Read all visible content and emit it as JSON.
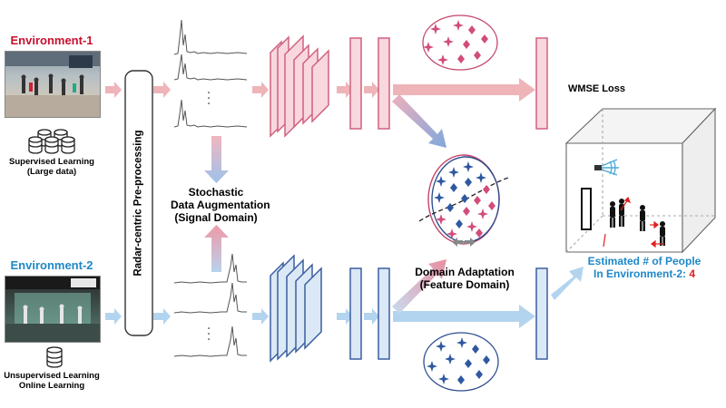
{
  "environment1": {
    "title": "Environment-1",
    "learning": [
      "Supervised Learning",
      "(Large data)"
    ]
  },
  "environment2": {
    "title": "Environment-2",
    "learning": [
      "Unsupervised Learning",
      "Online Learning"
    ]
  },
  "preprocessing": {
    "label": "Radar-centric Pre-processing"
  },
  "augmentation": {
    "lines": [
      "Stochastic",
      "Data Augmentation",
      "(Signal Domain)"
    ]
  },
  "domain_adaptation": {
    "lines": [
      "Domain Adaptation",
      "(Feature Domain)"
    ]
  },
  "loss": {
    "label": "WMSE Loss"
  },
  "output": {
    "lines": [
      "Estimated # of People",
      "In Environment-2: "
    ],
    "count": "4"
  },
  "signal_ellipsis": "•\n•\n•",
  "colors": {
    "env1": "#c8102e",
    "env2": "#1e88c8",
    "pink_fill": "#f8d7df",
    "pink_stroke": "#d0607e",
    "blue_fill": "#dbe8f6",
    "blue_stroke": "#3a5fa0",
    "pink_arrow": "#eeb4b8",
    "blue_arrow": "#b3d4ee"
  }
}
